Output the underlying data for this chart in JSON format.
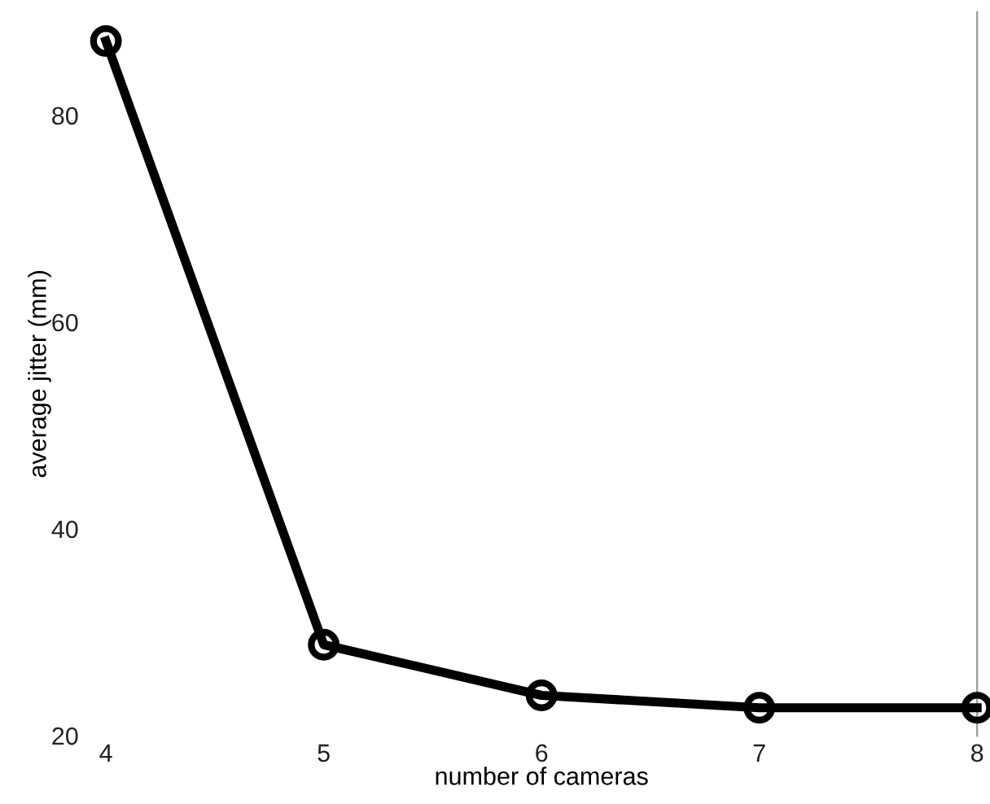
{
  "chart_data": {
    "type": "line",
    "xlabel": "number of cameras",
    "ylabel": "average jitter (mm)",
    "x": [
      4,
      5,
      6,
      7,
      8
    ],
    "series": [
      {
        "color": "#000000",
        "values": [
          87.2,
          28.8,
          23.9,
          22.7,
          22.7
        ]
      }
    ],
    "xlim": [
      4,
      8
    ],
    "ylim": [
      20,
      90
    ],
    "xticks": [
      4,
      5,
      6,
      7,
      8
    ],
    "yticks": [
      20,
      40,
      60,
      80
    ],
    "marker": "circle",
    "line_style": "solid",
    "grid": false,
    "legend": false
  }
}
